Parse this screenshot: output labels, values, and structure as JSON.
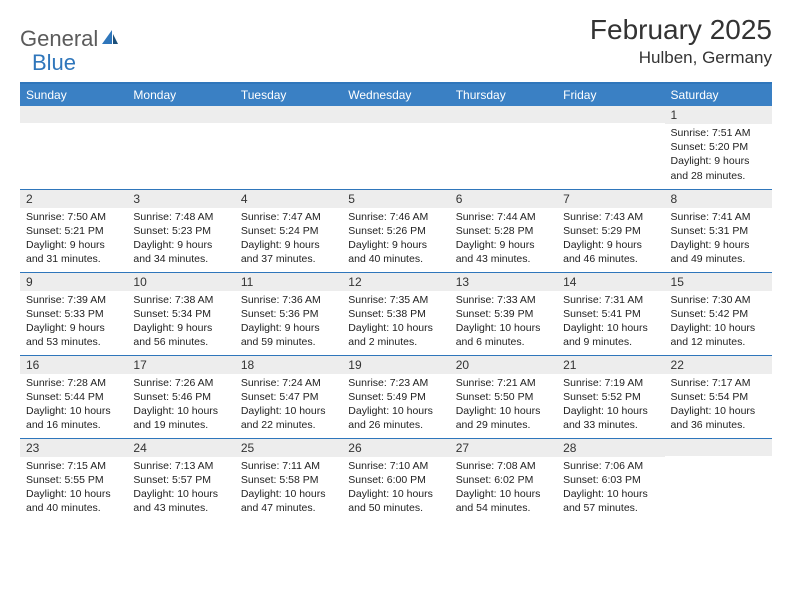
{
  "brand": {
    "part1": "General",
    "part2": "Blue"
  },
  "title": "February 2025",
  "location": "Hulben, Germany",
  "colors": {
    "accent": "#2f76bb",
    "header_bg": "#3a80c4",
    "daynum_bg": "#ededed",
    "text": "#222222",
    "page_bg": "#ffffff"
  },
  "weekdays": [
    "Sunday",
    "Monday",
    "Tuesday",
    "Wednesday",
    "Thursday",
    "Friday",
    "Saturday"
  ],
  "weeks": [
    [
      {
        "blank": true
      },
      {
        "blank": true
      },
      {
        "blank": true
      },
      {
        "blank": true
      },
      {
        "blank": true
      },
      {
        "blank": true
      },
      {
        "day": "1",
        "sunrise": "Sunrise: 7:51 AM",
        "sunset": "Sunset: 5:20 PM",
        "daylight": "Daylight: 9 hours and 28 minutes."
      }
    ],
    [
      {
        "day": "2",
        "sunrise": "Sunrise: 7:50 AM",
        "sunset": "Sunset: 5:21 PM",
        "daylight": "Daylight: 9 hours and 31 minutes."
      },
      {
        "day": "3",
        "sunrise": "Sunrise: 7:48 AM",
        "sunset": "Sunset: 5:23 PM",
        "daylight": "Daylight: 9 hours and 34 minutes."
      },
      {
        "day": "4",
        "sunrise": "Sunrise: 7:47 AM",
        "sunset": "Sunset: 5:24 PM",
        "daylight": "Daylight: 9 hours and 37 minutes."
      },
      {
        "day": "5",
        "sunrise": "Sunrise: 7:46 AM",
        "sunset": "Sunset: 5:26 PM",
        "daylight": "Daylight: 9 hours and 40 minutes."
      },
      {
        "day": "6",
        "sunrise": "Sunrise: 7:44 AM",
        "sunset": "Sunset: 5:28 PM",
        "daylight": "Daylight: 9 hours and 43 minutes."
      },
      {
        "day": "7",
        "sunrise": "Sunrise: 7:43 AM",
        "sunset": "Sunset: 5:29 PM",
        "daylight": "Daylight: 9 hours and 46 minutes."
      },
      {
        "day": "8",
        "sunrise": "Sunrise: 7:41 AM",
        "sunset": "Sunset: 5:31 PM",
        "daylight": "Daylight: 9 hours and 49 minutes."
      }
    ],
    [
      {
        "day": "9",
        "sunrise": "Sunrise: 7:39 AM",
        "sunset": "Sunset: 5:33 PM",
        "daylight": "Daylight: 9 hours and 53 minutes."
      },
      {
        "day": "10",
        "sunrise": "Sunrise: 7:38 AM",
        "sunset": "Sunset: 5:34 PM",
        "daylight": "Daylight: 9 hours and 56 minutes."
      },
      {
        "day": "11",
        "sunrise": "Sunrise: 7:36 AM",
        "sunset": "Sunset: 5:36 PM",
        "daylight": "Daylight: 9 hours and 59 minutes."
      },
      {
        "day": "12",
        "sunrise": "Sunrise: 7:35 AM",
        "sunset": "Sunset: 5:38 PM",
        "daylight": "Daylight: 10 hours and 2 minutes."
      },
      {
        "day": "13",
        "sunrise": "Sunrise: 7:33 AM",
        "sunset": "Sunset: 5:39 PM",
        "daylight": "Daylight: 10 hours and 6 minutes."
      },
      {
        "day": "14",
        "sunrise": "Sunrise: 7:31 AM",
        "sunset": "Sunset: 5:41 PM",
        "daylight": "Daylight: 10 hours and 9 minutes."
      },
      {
        "day": "15",
        "sunrise": "Sunrise: 7:30 AM",
        "sunset": "Sunset: 5:42 PM",
        "daylight": "Daylight: 10 hours and 12 minutes."
      }
    ],
    [
      {
        "day": "16",
        "sunrise": "Sunrise: 7:28 AM",
        "sunset": "Sunset: 5:44 PM",
        "daylight": "Daylight: 10 hours and 16 minutes."
      },
      {
        "day": "17",
        "sunrise": "Sunrise: 7:26 AM",
        "sunset": "Sunset: 5:46 PM",
        "daylight": "Daylight: 10 hours and 19 minutes."
      },
      {
        "day": "18",
        "sunrise": "Sunrise: 7:24 AM",
        "sunset": "Sunset: 5:47 PM",
        "daylight": "Daylight: 10 hours and 22 minutes."
      },
      {
        "day": "19",
        "sunrise": "Sunrise: 7:23 AM",
        "sunset": "Sunset: 5:49 PM",
        "daylight": "Daylight: 10 hours and 26 minutes."
      },
      {
        "day": "20",
        "sunrise": "Sunrise: 7:21 AM",
        "sunset": "Sunset: 5:50 PM",
        "daylight": "Daylight: 10 hours and 29 minutes."
      },
      {
        "day": "21",
        "sunrise": "Sunrise: 7:19 AM",
        "sunset": "Sunset: 5:52 PM",
        "daylight": "Daylight: 10 hours and 33 minutes."
      },
      {
        "day": "22",
        "sunrise": "Sunrise: 7:17 AM",
        "sunset": "Sunset: 5:54 PM",
        "daylight": "Daylight: 10 hours and 36 minutes."
      }
    ],
    [
      {
        "day": "23",
        "sunrise": "Sunrise: 7:15 AM",
        "sunset": "Sunset: 5:55 PM",
        "daylight": "Daylight: 10 hours and 40 minutes."
      },
      {
        "day": "24",
        "sunrise": "Sunrise: 7:13 AM",
        "sunset": "Sunset: 5:57 PM",
        "daylight": "Daylight: 10 hours and 43 minutes."
      },
      {
        "day": "25",
        "sunrise": "Sunrise: 7:11 AM",
        "sunset": "Sunset: 5:58 PM",
        "daylight": "Daylight: 10 hours and 47 minutes."
      },
      {
        "day": "26",
        "sunrise": "Sunrise: 7:10 AM",
        "sunset": "Sunset: 6:00 PM",
        "daylight": "Daylight: 10 hours and 50 minutes."
      },
      {
        "day": "27",
        "sunrise": "Sunrise: 7:08 AM",
        "sunset": "Sunset: 6:02 PM",
        "daylight": "Daylight: 10 hours and 54 minutes."
      },
      {
        "day": "28",
        "sunrise": "Sunrise: 7:06 AM",
        "sunset": "Sunset: 6:03 PM",
        "daylight": "Daylight: 10 hours and 57 minutes."
      },
      {
        "blank": true
      }
    ]
  ]
}
